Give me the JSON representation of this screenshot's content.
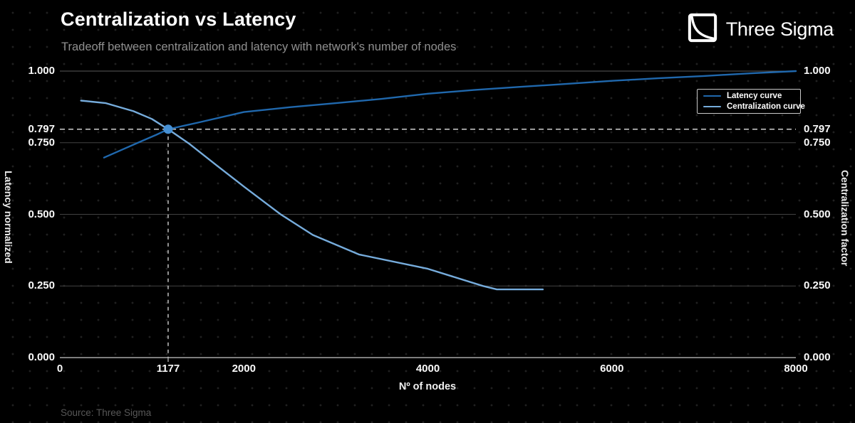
{
  "header": {
    "title": "Centralization vs Latency",
    "subtitle": "Tradeoff between centralization and latency with network's number of nodes",
    "brand": "Three Sigma"
  },
  "footer": {
    "source": "Source: Three Sigma"
  },
  "legend": [
    {
      "label": "Latency curve",
      "color": "#2068ad"
    },
    {
      "label": "Centralization curve",
      "color": "#76acdc"
    }
  ],
  "colors": {
    "background": "#000000",
    "latency_curve": "#2068ad",
    "centralization_curve": "#76acdc",
    "marker": "#4690d4",
    "grid_inner": "#424242",
    "grid_top": "#5a5a5a",
    "axis_bottom": "#a8a8a8",
    "crosshair_dash": "#cfcfcf"
  },
  "chart_data": {
    "type": "line",
    "title": "Centralization vs Latency",
    "subtitle": "Tradeoff between centralization and latency with network's number of nodes",
    "xlabel": "Nº of nodes",
    "ylabel_left": "Latency normalized",
    "ylabel_right": "Centralization factor",
    "xlim": [
      0,
      8000
    ],
    "ylim": [
      0,
      1
    ],
    "grid": "horizontal-only",
    "legend_position": "top-right",
    "grid_values": [
      0,
      0.25,
      0.5,
      0.75,
      1.0
    ],
    "x_ticks": [
      {
        "value": 0,
        "label": "0"
      },
      {
        "value": 1177,
        "label": "1177"
      },
      {
        "value": 2000,
        "label": "2000"
      },
      {
        "value": 4000,
        "label": "4000"
      },
      {
        "value": 6000,
        "label": "6000"
      },
      {
        "value": 8000,
        "label": "8000"
      }
    ],
    "y_ticks": [
      {
        "value": 0.0,
        "label": "0.000"
      },
      {
        "value": 0.25,
        "label": "0.250"
      },
      {
        "value": 0.5,
        "label": "0.500"
      },
      {
        "value": 0.75,
        "label": "0.750"
      },
      {
        "value": 0.797,
        "label": "0.797"
      },
      {
        "value": 1.0,
        "label": "1.000"
      }
    ],
    "crosshair": {
      "x": 1177,
      "y": 0.797
    },
    "series": [
      {
        "name": "Latency curve",
        "color": "#2068ad",
        "points": [
          [
            480,
            0.698
          ],
          [
            700,
            0.729
          ],
          [
            900,
            0.757
          ],
          [
            1050,
            0.778
          ],
          [
            1177,
            0.797
          ],
          [
            1500,
            0.82
          ],
          [
            2000,
            0.857
          ],
          [
            2500,
            0.874
          ],
          [
            3000,
            0.888
          ],
          [
            3500,
            0.903
          ],
          [
            4000,
            0.921
          ],
          [
            4500,
            0.934
          ],
          [
            5000,
            0.945
          ],
          [
            5500,
            0.955
          ],
          [
            6000,
            0.966
          ],
          [
            6500,
            0.975
          ],
          [
            7000,
            0.983
          ],
          [
            7500,
            0.992
          ],
          [
            8000,
            1.0
          ]
        ]
      },
      {
        "name": "Centralization curve",
        "color": "#76acdc",
        "points": [
          [
            230,
            0.897
          ],
          [
            500,
            0.888
          ],
          [
            800,
            0.86
          ],
          [
            1000,
            0.833
          ],
          [
            1177,
            0.797
          ],
          [
            1400,
            0.748
          ],
          [
            1700,
            0.672
          ],
          [
            2000,
            0.597
          ],
          [
            2400,
            0.5
          ],
          [
            2750,
            0.428
          ],
          [
            3250,
            0.36
          ],
          [
            4000,
            0.31
          ],
          [
            4600,
            0.25
          ],
          [
            4750,
            0.238
          ],
          [
            5250,
            0.238
          ]
        ]
      }
    ]
  }
}
